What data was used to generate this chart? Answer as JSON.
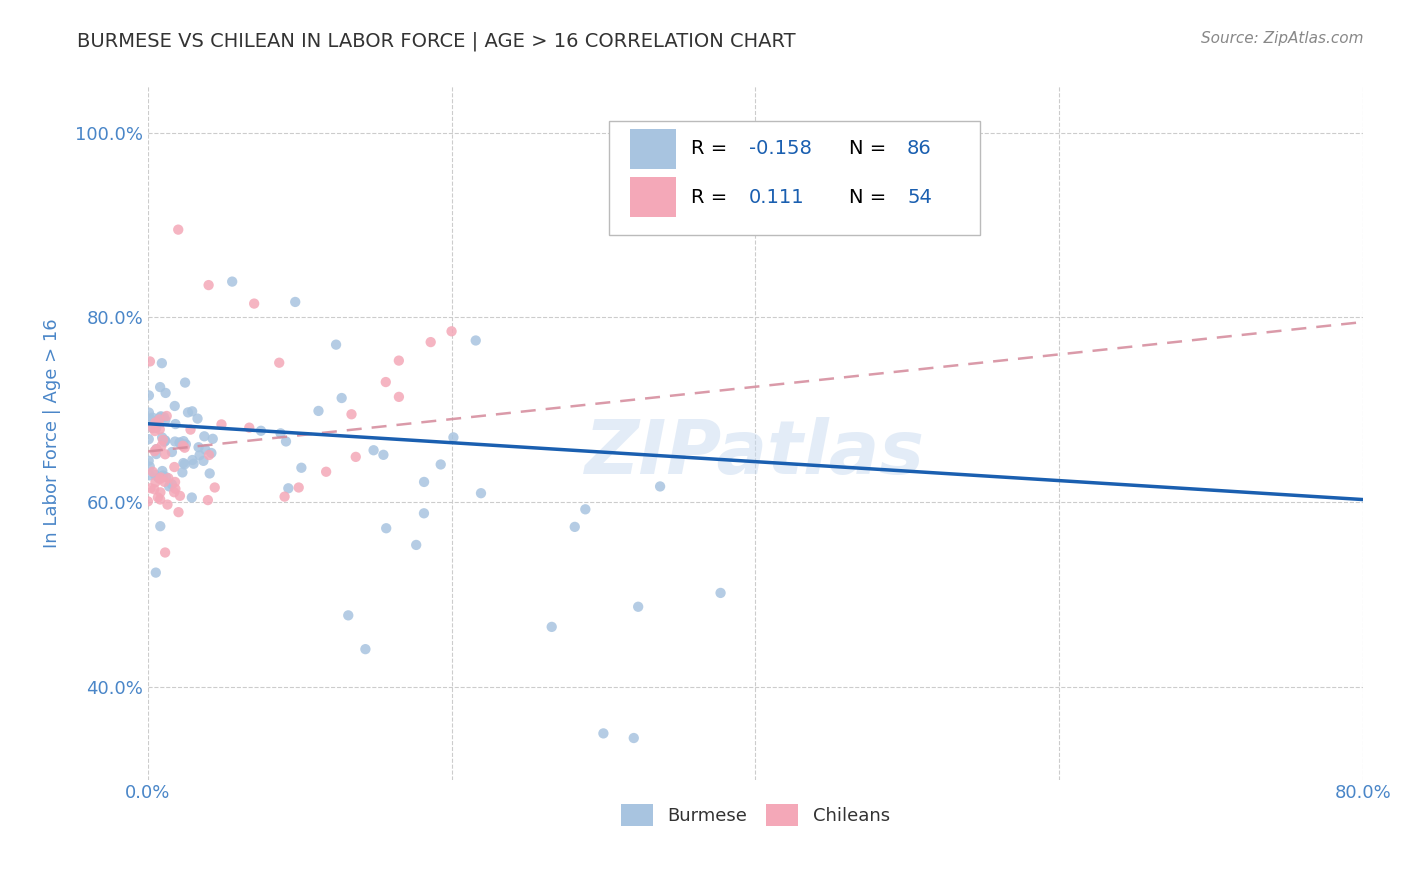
{
  "title": "BURMESE VS CHILEAN IN LABOR FORCE | AGE > 16 CORRELATION CHART",
  "source_text": "Source: ZipAtlas.com",
  "ylabel": "In Labor Force | Age > 16",
  "watermark": "ZIPatlas",
  "burmese_R": -0.158,
  "burmese_N": 86,
  "chilean_R": 0.111,
  "chilean_N": 54,
  "burmese_color": "#a8c4e0",
  "chilean_color": "#f4a8b8",
  "burmese_line_color": "#1a5fb0",
  "chilean_line_color": "#d4899a",
  "legend_label_burmese": "Burmese",
  "legend_label_chilean": "Chileans",
  "xlim": [
    0.0,
    0.8
  ],
  "ylim": [
    0.3,
    1.05
  ],
  "xticks": [
    0.0,
    0.2,
    0.4,
    0.6,
    0.8
  ],
  "yticks": [
    0.4,
    0.6,
    0.8,
    1.0
  ],
  "xticklabels": [
    "0.0%",
    "",
    "",
    "",
    "80.0%"
  ],
  "yticklabels": [
    "40.0%",
    "60.0%",
    "80.0%",
    "100.0%"
  ],
  "background_color": "#ffffff",
  "grid_color": "#cccccc",
  "title_color": "#333333",
  "axis_label_color": "#4a86c8",
  "tick_color": "#4a86c8",
  "burmese_line_start_y": 0.685,
  "burmese_line_end_y": 0.603,
  "chilean_line_start_y": 0.655,
  "chilean_line_end_y": 0.795
}
